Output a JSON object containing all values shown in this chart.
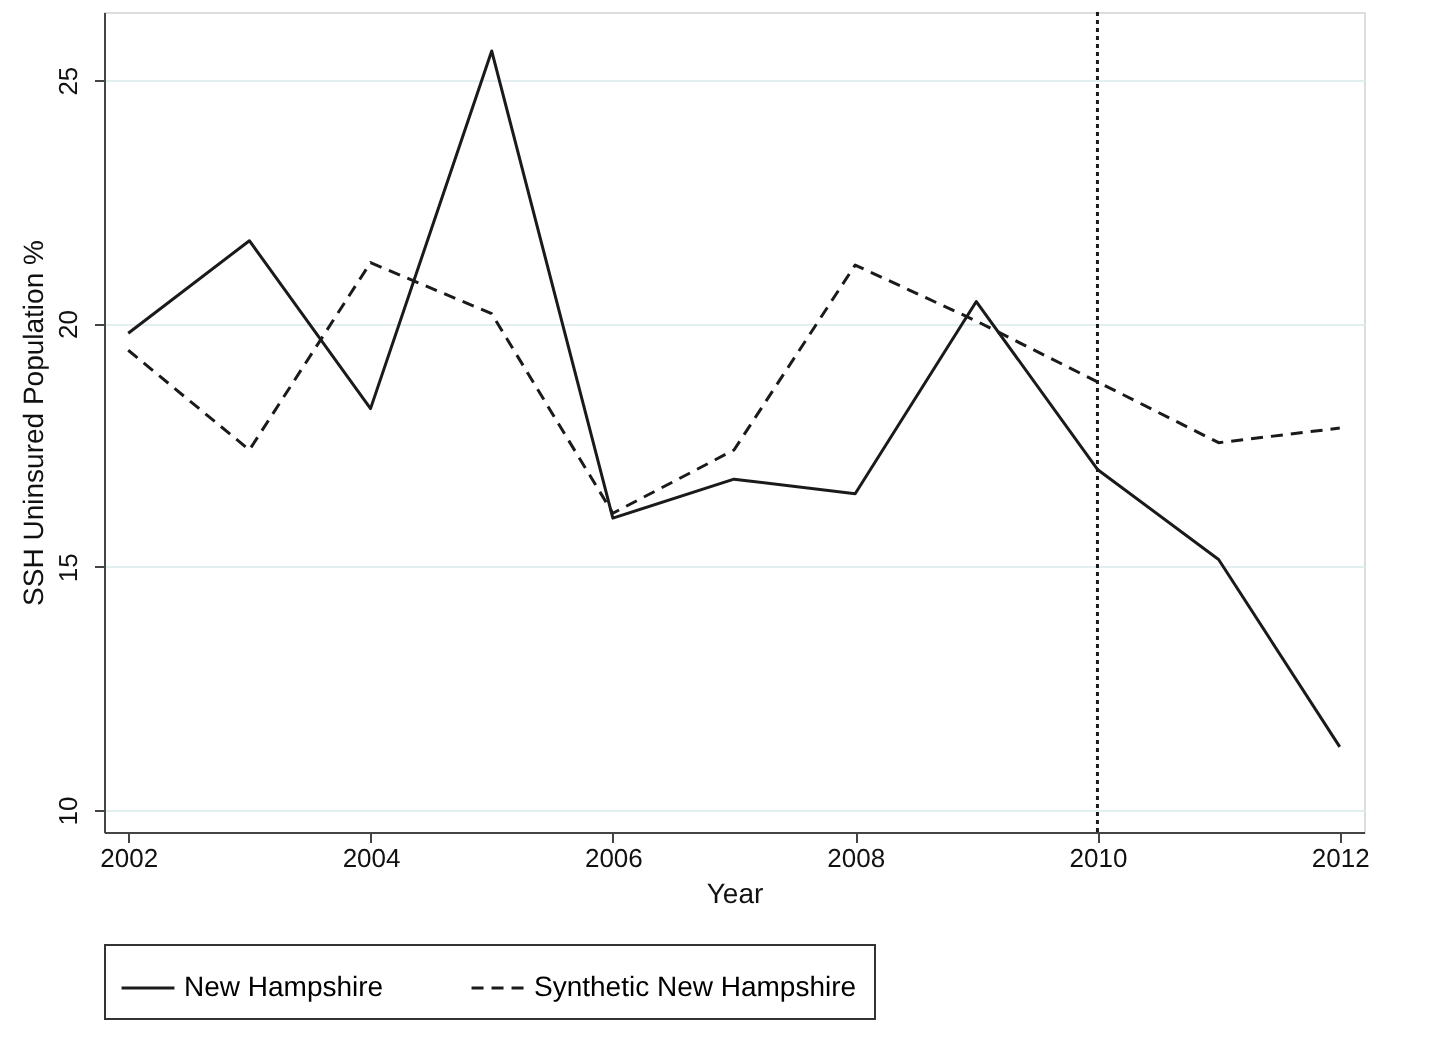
{
  "chart_data": {
    "type": "line",
    "xlabel": "Year",
    "ylabel": "SSH Uninsured Population %",
    "x": [
      2002,
      2003,
      2004,
      2005,
      2006,
      2007,
      2008,
      2009,
      2010,
      2011,
      2012
    ],
    "series": [
      {
        "name": "New Hampshire",
        "color": "#1a1a1a",
        "line_style": "solid",
        "values": [
          19.8,
          21.7,
          18.25,
          25.6,
          16.0,
          16.8,
          16.5,
          20.45,
          17.0,
          15.15,
          11.3
        ]
      },
      {
        "name": "Synthetic New Hampshire",
        "color": "#1a1a1a",
        "line_style": "dashed",
        "values": [
          19.45,
          17.4,
          21.25,
          20.2,
          16.1,
          17.4,
          21.2,
          20.05,
          18.8,
          17.55,
          17.85
        ]
      }
    ],
    "xlim": [
      2001.8,
      2012.2
    ],
    "xticks": [
      2002,
      2004,
      2006,
      2008,
      2010,
      2012
    ],
    "ylim": [
      9.55,
      26.4
    ],
    "yticks": [
      10,
      15,
      20,
      25
    ],
    "ref_lines": [
      {
        "axis": "x",
        "value": 2010,
        "line_style": "dotted",
        "color": "#1a1a1a"
      }
    ],
    "grid": "y",
    "legend": "bottom",
    "marker": "none"
  }
}
